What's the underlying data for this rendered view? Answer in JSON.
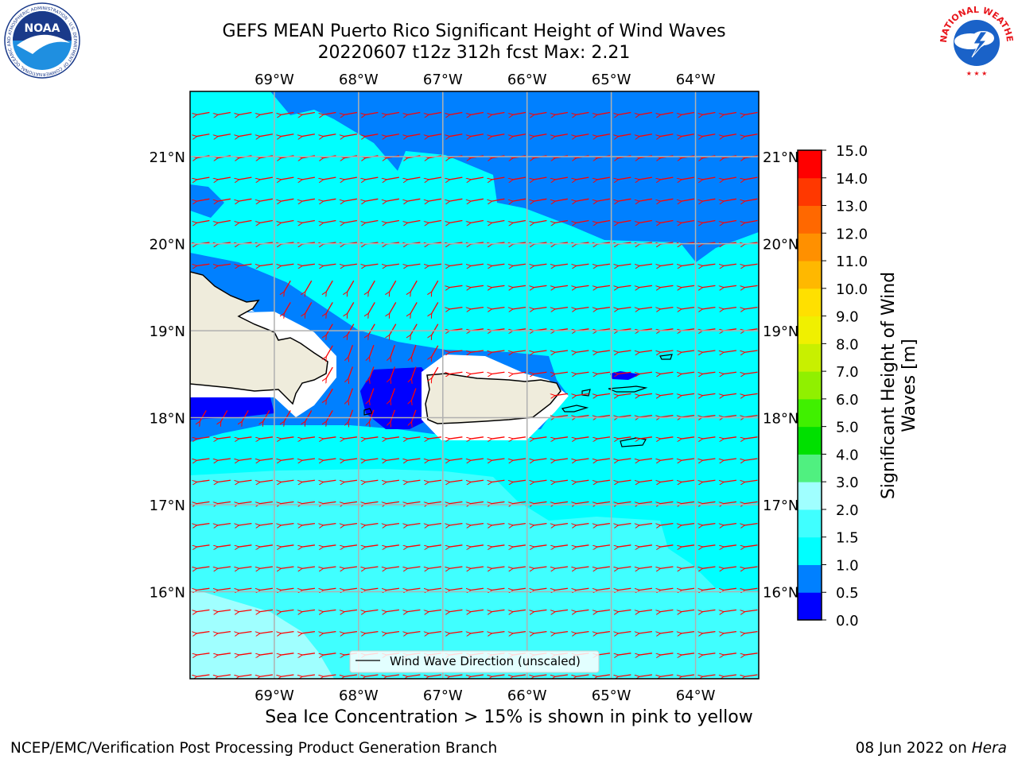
{
  "title_line1": "GEFS MEAN Puerto Rico Significant Height of Wind Waves",
  "title_line2": "20220607 t12z 312h fcst   Max: 2.21",
  "subcaption": "Sea Ice Concentration > 15% is shown in pink to yellow",
  "footer_left": "NCEP/EMC/Verification Post Processing Product Generation Branch",
  "footer_right_date": "08 Jun 2022 on ",
  "footer_right_machine": "Hera",
  "legend_label": "Wind Wave Direction (unscaled)",
  "colorbar": {
    "label_line1": "Significant Height of Wind",
    "label_line2": "Waves [m]",
    "ticks": [
      "0.0",
      "0.5",
      "1.0",
      "1.5",
      "2.0",
      "3.0",
      "4.0",
      "5.0",
      "6.0",
      "7.0",
      "8.0",
      "9.0",
      "10.0",
      "11.0",
      "12.0",
      "13.0",
      "14.0",
      "15.0"
    ],
    "colors": [
      "#0000ff",
      "#0080ff",
      "#00ffff",
      "#40ffff",
      "#a0ffff",
      "#50f080",
      "#00e000",
      "#40f000",
      "#90f000",
      "#c8f000",
      "#f0f000",
      "#ffe000",
      "#ffb800",
      "#ff9000",
      "#ff6800",
      "#ff3800",
      "#ff0000"
    ]
  },
  "map": {
    "lon_labels": [
      "69°W",
      "68°W",
      "67°W",
      "66°W",
      "65°W",
      "64°W"
    ],
    "lat_labels": [
      "21°N",
      "20°N",
      "19°N",
      "18°N",
      "17°N",
      "16°N"
    ],
    "extent": {
      "lon_min": -70.0,
      "lon_max": -63.25,
      "lat_min": 15.0,
      "lat_max": 21.75
    },
    "land_color": "#efecdc",
    "arrow_color": "#ff0000"
  },
  "logos": {
    "noaa_text": "NOAA",
    "noaa_ring_text": "NATIONAL OCEANIC AND ATMOSPHERIC ADMINISTRATION · U.S. DEPARTMENT OF COMMERCE",
    "nws_ring_text": "NATIONAL WEATHER SERVICE"
  }
}
